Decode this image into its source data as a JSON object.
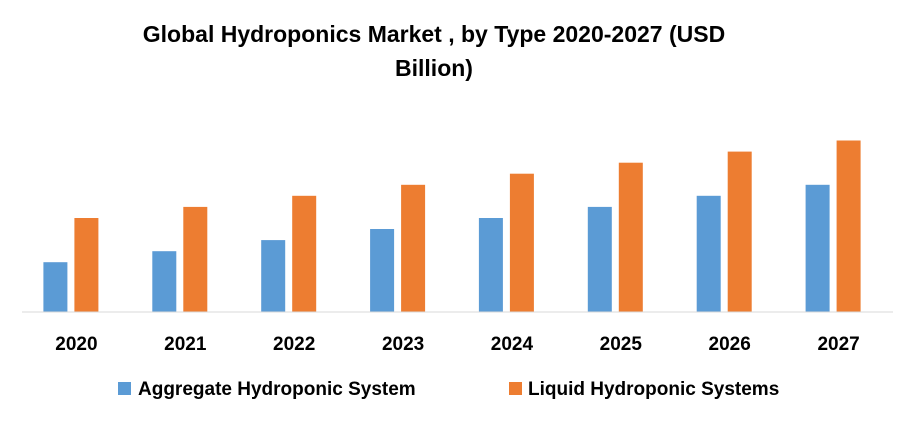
{
  "chart_data": {
    "type": "bar",
    "title_lines": [
      "Global Hydroponics Market , by Type 2020-2027 (USD",
      "Billion)"
    ],
    "categories": [
      "2020",
      "2021",
      "2022",
      "2023",
      "2024",
      "2025",
      "2026",
      "2027"
    ],
    "series": [
      {
        "name": "Aggregate Hydroponic System",
        "color": "#5B9BD5",
        "values": [
          4.5,
          5.5,
          6.5,
          7.5,
          8.5,
          9.5,
          10.5,
          11.5
        ]
      },
      {
        "name": "Liquid Hydroponic Systems",
        "color": "#ED7D31",
        "values": [
          8.5,
          9.5,
          10.5,
          11.5,
          12.5,
          13.5,
          14.5,
          15.5
        ]
      }
    ],
    "ylim": [
      0,
      16
    ],
    "grid": false,
    "legend_position": "bottom",
    "axis_color": "#d9d9d9"
  }
}
